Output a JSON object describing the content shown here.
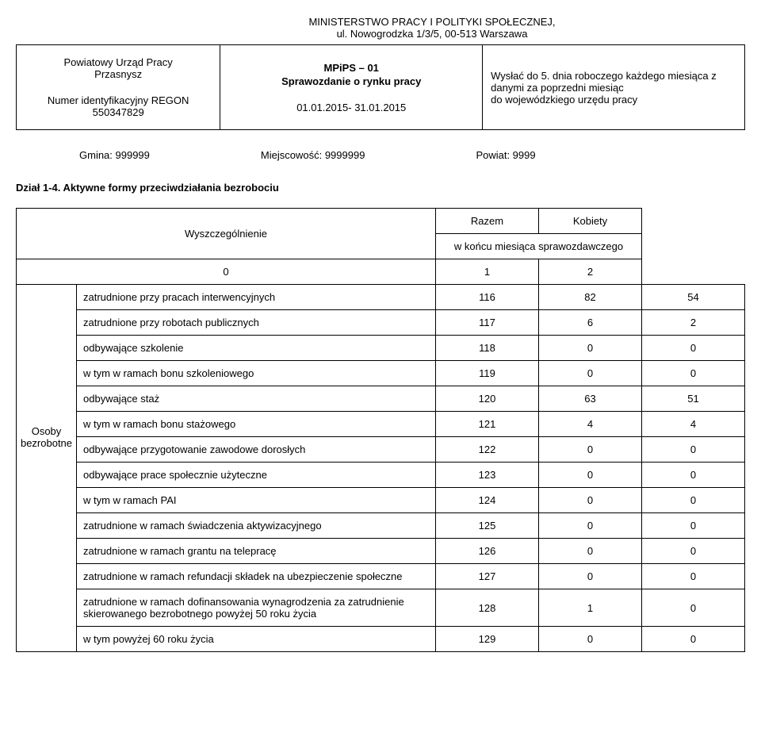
{
  "ministry": {
    "line1": "MINISTERSTWO PRACY I POLITYKI SPOŁECZNEJ,",
    "line2": "ul. Nowogrodzka 1/3/5, 00-513 Warszawa"
  },
  "header": {
    "office_line1": "Powiatowy Urząd Pracy",
    "office_line2": "Przasnysz",
    "regon_label": "Numer identyfikacyjny REGON",
    "regon_value": "550347829",
    "form_code": "MPiPS – 01",
    "form_title": "Sprawozdanie o rynku pracy",
    "period": "01.01.2015- 31.01.2015",
    "send_label": "Wysłać do 5. dnia roboczego każdego miesiąca z danymi za poprzedni miesiąc",
    "send_target": "do wojewódzkiego urzędu pracy"
  },
  "admin": {
    "gmina": "Gmina: 999999",
    "miejscowosc": "Miejscowość: 9999999",
    "powiat": "Powiat: 9999"
  },
  "section": {
    "title": "Dział 1-4. Aktywne formy przeciwdziałania bezrobociu"
  },
  "table": {
    "header_wysz": "Wyszczególnienie",
    "header_razem": "Razem",
    "header_kobiety": "Kobiety",
    "subheader": "w końcu miesiąca sprawozdawczego",
    "idx0": "0",
    "idx1": "1",
    "idx2": "2",
    "side_label": "Osoby bezrobotne",
    "rows": [
      {
        "label": "zatrudnione przy pracach interwencyjnych",
        "idx": "116",
        "v1": "82",
        "v2": "54"
      },
      {
        "label": "zatrudnione przy robotach publicznych",
        "idx": "117",
        "v1": "6",
        "v2": "2"
      },
      {
        "label": "odbywające szkolenie",
        "idx": "118",
        "v1": "0",
        "v2": "0"
      },
      {
        "label": " w tym w ramach bonu szkoleniowego",
        "idx": "119",
        "v1": "0",
        "v2": "0"
      },
      {
        "label": "odbywające staż",
        "idx": "120",
        "v1": "63",
        "v2": "51"
      },
      {
        "label": " w tym w ramach bonu stażowego",
        "idx": "121",
        "v1": "4",
        "v2": "4"
      },
      {
        "label": "odbywające przygotowanie zawodowe dorosłych",
        "idx": "122",
        "v1": "0",
        "v2": "0"
      },
      {
        "label": "odbywające prace społecznie użyteczne",
        "idx": "123",
        "v1": "0",
        "v2": "0"
      },
      {
        "label": "w tym w ramach PAI",
        "idx": "124",
        "v1": "0",
        "v2": "0"
      },
      {
        "label": "zatrudnione w ramach świadczenia aktywizacyjnego",
        "idx": "125",
        "v1": "0",
        "v2": "0"
      },
      {
        "label": "zatrudnione w ramach grantu na telepracę",
        "idx": "126",
        "v1": "0",
        "v2": "0"
      },
      {
        "label": "zatrudnione w ramach refundacji składek na ubezpieczenie społeczne",
        "idx": "127",
        "v1": "0",
        "v2": "0"
      },
      {
        "label": "zatrudnione w ramach dofinansowania wynagrodzenia za zatrudnienie skierowanego bezrobotnego powyżej 50 roku życia",
        "idx": "128",
        "v1": "1",
        "v2": "0"
      },
      {
        "label": "w tym powyżej 60 roku życia",
        "idx": "129",
        "v1": "0",
        "v2": "0"
      }
    ]
  }
}
